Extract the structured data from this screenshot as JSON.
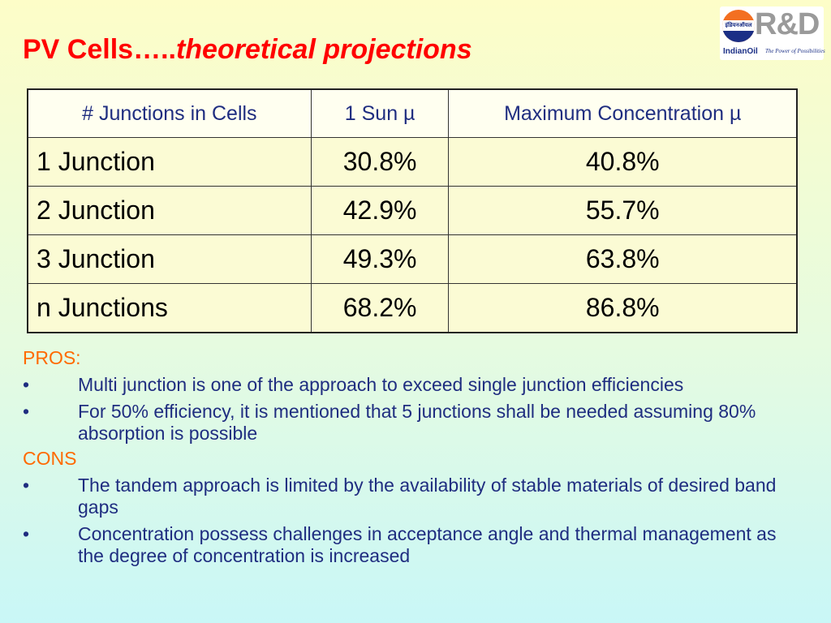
{
  "title": {
    "main": "PV Cells…..",
    "italic": "theoretical projections"
  },
  "logo": {
    "hindi": "इंडियनऑयल",
    "rd": "R&D",
    "brand": "IndianOil",
    "tagline": "The Power of Possibilities"
  },
  "table": {
    "headers": [
      "# Junctions in Cells",
      "1 Sun µ",
      "Maximum Concentration µ"
    ],
    "rows": [
      [
        "1 Junction",
        "30.8%",
        "40.8%"
      ],
      [
        "2 Junction",
        "42.9%",
        "55.7%"
      ],
      [
        "3 Junction",
        "49.3%",
        "63.8%"
      ],
      [
        "n Junctions",
        "68.2%",
        "86.8%"
      ]
    ]
  },
  "bullet_symbol": "•",
  "pros": {
    "heading": "PROS:",
    "items": [
      "Multi junction is one of the approach to exceed single junction efficiencies",
      "For 50% efficiency, it is mentioned that 5 junctions shall be needed assuming 80% absorption is possible"
    ]
  },
  "cons": {
    "heading": "CONS",
    "items": [
      "The tandem approach is limited by the availability of stable materials of desired band gaps",
      "Concentration possess challenges in acceptance angle and thermal management as the degree of  concentration is increased"
    ]
  },
  "colors": {
    "title": "#ff0000",
    "heading": "#ff6a00",
    "text": "#1f2d80",
    "logo_orange": "#f36f21",
    "logo_blue": "#1b2f86"
  }
}
